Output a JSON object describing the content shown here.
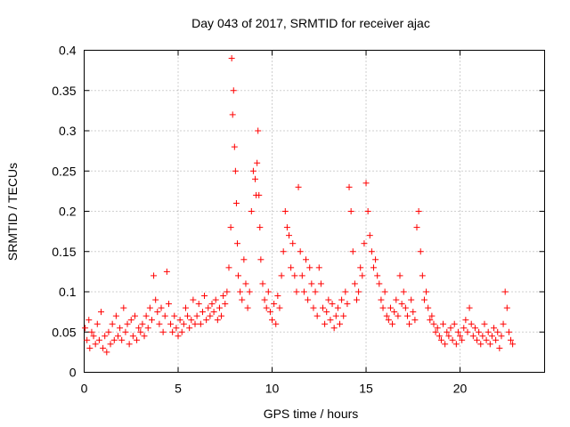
{
  "chart_data": {
    "type": "scatter",
    "title": "Day 043 of 2017, SRMTID for receiver ajac",
    "xlabel": "GPS time / hours",
    "ylabel": "SRMTID / TECUs",
    "xlim": [
      0,
      24.5
    ],
    "ylim": [
      0,
      0.4
    ],
    "x_ticks": [
      0,
      5,
      10,
      15,
      20
    ],
    "x_tick_labels": [
      "0",
      "5",
      "10",
      "15",
      "20"
    ],
    "y_ticks": [
      0,
      0.05,
      0.1,
      0.15,
      0.2,
      0.25,
      0.3,
      0.35,
      0.4
    ],
    "y_tick_labels": [
      "0",
      "0.05",
      "0.1",
      "0.15",
      "0.2",
      "0.25",
      "0.3",
      "0.35",
      "0.4"
    ],
    "grid": true,
    "marker": "+",
    "series": [
      {
        "name": "SRMTID",
        "color": "#ff0000",
        "x": [
          0.05,
          0.15,
          0.25,
          0.3,
          0.4,
          0.5,
          0.6,
          0.7,
          0.8,
          0.9,
          1.0,
          1.1,
          1.2,
          1.3,
          1.4,
          1.5,
          1.6,
          1.7,
          1.8,
          1.9,
          2.0,
          2.1,
          2.2,
          2.3,
          2.4,
          2.5,
          2.6,
          2.7,
          2.8,
          2.9,
          3.0,
          3.1,
          3.2,
          3.3,
          3.4,
          3.5,
          3.6,
          3.7,
          3.8,
          3.9,
          4.0,
          4.1,
          4.2,
          4.3,
          4.4,
          4.5,
          4.6,
          4.7,
          4.8,
          4.9,
          5.0,
          5.1,
          5.2,
          5.3,
          5.4,
          5.5,
          5.6,
          5.7,
          5.8,
          5.9,
          6.0,
          6.1,
          6.2,
          6.3,
          6.4,
          6.5,
          6.6,
          6.7,
          6.8,
          6.9,
          7.0,
          7.1,
          7.2,
          7.3,
          7.4,
          7.5,
          7.6,
          7.7,
          7.8,
          7.85,
          7.9,
          7.95,
          8.0,
          8.05,
          8.1,
          8.15,
          8.2,
          8.3,
          8.4,
          8.5,
          8.6,
          8.7,
          8.8,
          8.9,
          9.0,
          9.1,
          9.15,
          9.2,
          9.25,
          9.3,
          9.35,
          9.4,
          9.5,
          9.6,
          9.7,
          9.8,
          9.9,
          10.0,
          10.1,
          10.2,
          10.3,
          10.4,
          10.5,
          10.6,
          10.7,
          10.8,
          10.9,
          11.0,
          11.1,
          11.2,
          11.3,
          11.4,
          11.5,
          11.6,
          11.7,
          11.8,
          11.9,
          12.0,
          12.1,
          12.2,
          12.3,
          12.4,
          12.5,
          12.6,
          12.7,
          12.8,
          12.9,
          13.0,
          13.1,
          13.2,
          13.3,
          13.4,
          13.5,
          13.6,
          13.7,
          13.8,
          13.9,
          14.0,
          14.1,
          14.2,
          14.3,
          14.4,
          14.5,
          14.6,
          14.7,
          14.8,
          14.9,
          15.0,
          15.1,
          15.2,
          15.3,
          15.4,
          15.5,
          15.6,
          15.7,
          15.8,
          15.9,
          16.0,
          16.1,
          16.2,
          16.3,
          16.4,
          16.5,
          16.6,
          16.7,
          16.8,
          16.9,
          17.0,
          17.1,
          17.2,
          17.3,
          17.4,
          17.5,
          17.6,
          17.7,
          17.8,
          17.9,
          18.0,
          18.1,
          18.2,
          18.3,
          18.4,
          18.5,
          18.6,
          18.7,
          18.8,
          18.9,
          19.0,
          19.1,
          19.2,
          19.3,
          19.4,
          19.5,
          19.6,
          19.7,
          19.8,
          19.9,
          20.0,
          20.1,
          20.2,
          20.3,
          20.4,
          20.5,
          20.6,
          20.7,
          20.8,
          20.9,
          21.0,
          21.1,
          21.2,
          21.3,
          21.4,
          21.5,
          21.6,
          21.7,
          21.8,
          21.9,
          22.0,
          22.1,
          22.2,
          22.3,
          22.4,
          22.5,
          22.6,
          22.7,
          22.8
        ],
        "y": [
          0.055,
          0.04,
          0.065,
          0.03,
          0.05,
          0.045,
          0.035,
          0.06,
          0.04,
          0.075,
          0.03,
          0.045,
          0.025,
          0.05,
          0.035,
          0.06,
          0.04,
          0.07,
          0.045,
          0.055,
          0.04,
          0.08,
          0.05,
          0.06,
          0.035,
          0.065,
          0.045,
          0.07,
          0.04,
          0.055,
          0.05,
          0.06,
          0.045,
          0.07,
          0.055,
          0.08,
          0.065,
          0.12,
          0.09,
          0.075,
          0.06,
          0.08,
          0.05,
          0.07,
          0.125,
          0.085,
          0.06,
          0.05,
          0.07,
          0.055,
          0.045,
          0.065,
          0.05,
          0.06,
          0.08,
          0.07,
          0.055,
          0.065,
          0.09,
          0.06,
          0.07,
          0.085,
          0.06,
          0.075,
          0.095,
          0.065,
          0.08,
          0.07,
          0.085,
          0.075,
          0.09,
          0.065,
          0.08,
          0.07,
          0.095,
          0.085,
          0.1,
          0.13,
          0.18,
          0.39,
          0.32,
          0.35,
          0.28,
          0.25,
          0.21,
          0.16,
          0.12,
          0.1,
          0.09,
          0.14,
          0.11,
          0.08,
          0.1,
          0.2,
          0.25,
          0.24,
          0.22,
          0.26,
          0.3,
          0.22,
          0.18,
          0.14,
          0.11,
          0.09,
          0.08,
          0.1,
          0.075,
          0.065,
          0.085,
          0.06,
          0.095,
          0.08,
          0.12,
          0.15,
          0.2,
          0.18,
          0.17,
          0.13,
          0.16,
          0.12,
          0.1,
          0.23,
          0.15,
          0.12,
          0.1,
          0.14,
          0.09,
          0.13,
          0.11,
          0.08,
          0.1,
          0.07,
          0.13,
          0.11,
          0.08,
          0.06,
          0.075,
          0.09,
          0.065,
          0.085,
          0.055,
          0.07,
          0.08,
          0.06,
          0.09,
          0.07,
          0.1,
          0.085,
          0.23,
          0.2,
          0.15,
          0.11,
          0.09,
          0.1,
          0.13,
          0.12,
          0.16,
          0.235,
          0.2,
          0.17,
          0.15,
          0.13,
          0.14,
          0.12,
          0.11,
          0.09,
          0.08,
          0.1,
          0.07,
          0.065,
          0.08,
          0.06,
          0.075,
          0.09,
          0.07,
          0.12,
          0.085,
          0.1,
          0.08,
          0.07,
          0.06,
          0.09,
          0.075,
          0.065,
          0.18,
          0.2,
          0.15,
          0.12,
          0.09,
          0.1,
          0.08,
          0.065,
          0.07,
          0.06,
          0.05,
          0.055,
          0.045,
          0.04,
          0.06,
          0.035,
          0.05,
          0.045,
          0.055,
          0.04,
          0.06,
          0.035,
          0.05,
          0.045,
          0.04,
          0.055,
          0.065,
          0.05,
          0.08,
          0.06,
          0.045,
          0.055,
          0.04,
          0.05,
          0.035,
          0.045,
          0.06,
          0.04,
          0.05,
          0.035,
          0.045,
          0.055,
          0.04,
          0.05,
          0.03,
          0.045,
          0.06,
          0.1,
          0.08,
          0.05,
          0.04,
          0.035
        ]
      }
    ]
  }
}
